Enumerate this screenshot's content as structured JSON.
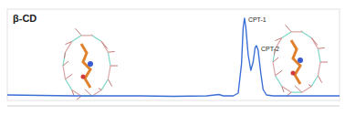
{
  "chart_data": {
    "type": "line",
    "title": "β-CD",
    "color": "#3b6fd6",
    "tick_labels": false,
    "grid": false,
    "x": [
      0,
      10,
      20,
      30,
      40,
      50,
      60,
      63.7,
      65,
      68,
      69.5,
      70.5,
      71,
      71.4,
      71.8,
      72.5,
      73.3,
      74,
      74.6,
      75,
      75.5,
      76.3,
      77,
      78,
      80,
      90,
      100
    ],
    "values": [
      6,
      5.5,
      5,
      5,
      5,
      4.5,
      5,
      6.5,
      5,
      5,
      8,
      40,
      80,
      90,
      80,
      50,
      33,
      42,
      58,
      60,
      55,
      30,
      12,
      6,
      5,
      5,
      5
    ],
    "xlim": [
      0,
      100
    ],
    "ylim": [
      0,
      100
    ],
    "annotations": [
      {
        "text": "CPT-1",
        "x": 71.4,
        "y": 90
      },
      {
        "text": "CPT-2",
        "x": 75,
        "y": 60
      }
    ]
  }
}
